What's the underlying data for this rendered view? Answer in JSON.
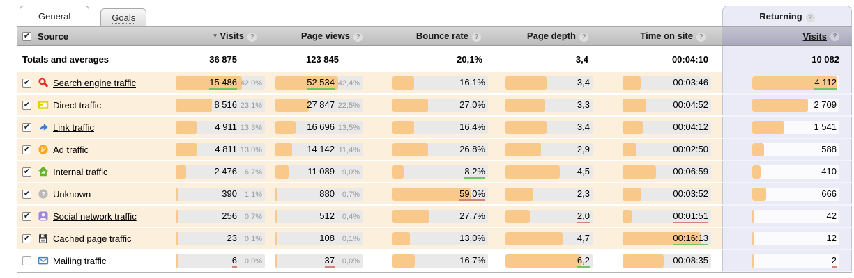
{
  "glyphs": {
    "help": "?",
    "sort_desc": "▼",
    "check": "✔"
  },
  "colors": {
    "bar": "#f9c98c",
    "row_bg": "#fcf0dc",
    "returning_bg": "#ebebf8",
    "mark_green": "#77c464",
    "mark_red": "#d2837a"
  },
  "tabs": [
    {
      "label": "General",
      "active": true
    },
    {
      "label": "Goals",
      "active": false
    }
  ],
  "table": {
    "header": {
      "source": "Source",
      "visits": "Visits",
      "page_views": "Page views",
      "bounce_rate": "Bounce rate",
      "page_depth": "Page depth",
      "time_on_site": "Time on site",
      "returning": "Returning",
      "returning_visits": "Visits"
    },
    "totals": {
      "label": "Totals and averages",
      "visits": "36 875",
      "page_views": "123 845",
      "bounce_rate": "20,1%",
      "page_depth": "3,4",
      "time_on_site": "00:04:10",
      "returning_visits": "10 082"
    },
    "rows": [
      {
        "label": "Search engine traffic",
        "icon": "search-icon",
        "checked": true,
        "link": true,
        "visits": {
          "value": "15 486",
          "num": 15486,
          "share": "42,0%",
          "mark": "green"
        },
        "page_views": {
          "value": "52 534",
          "num": 52534,
          "share": "42,4%",
          "mark": "green"
        },
        "bounce_rate": {
          "value": "16,1%",
          "num": 16.1
        },
        "page_depth": {
          "value": "3,4",
          "num": 3.4
        },
        "time_on_site": {
          "value": "00:03:46",
          "num": 226
        },
        "returning_visits": {
          "value": "4 112",
          "num": 4112,
          "mark": "green"
        }
      },
      {
        "label": "Direct traffic",
        "icon": "direct-icon",
        "checked": true,
        "link": false,
        "visits": {
          "value": "8 516",
          "num": 8516,
          "share": "23,1%"
        },
        "page_views": {
          "value": "27 847",
          "num": 27847,
          "share": "22,5%"
        },
        "bounce_rate": {
          "value": "27,0%",
          "num": 27.0
        },
        "page_depth": {
          "value": "3,3",
          "num": 3.3
        },
        "time_on_site": {
          "value": "00:04:52",
          "num": 292
        },
        "returning_visits": {
          "value": "2 709",
          "num": 2709
        }
      },
      {
        "label": "Link traffic",
        "icon": "link-icon",
        "checked": true,
        "link": true,
        "visits": {
          "value": "4 911",
          "num": 4911,
          "share": "13,3%"
        },
        "page_views": {
          "value": "16 696",
          "num": 16696,
          "share": "13,5%"
        },
        "bounce_rate": {
          "value": "16,4%",
          "num": 16.4
        },
        "page_depth": {
          "value": "3,4",
          "num": 3.4
        },
        "time_on_site": {
          "value": "00:04:12",
          "num": 252
        },
        "returning_visits": {
          "value": "1 541",
          "num": 1541
        }
      },
      {
        "label": "Ad traffic",
        "icon": "ad-icon",
        "checked": true,
        "link": true,
        "visits": {
          "value": "4 811",
          "num": 4811,
          "share": "13,0%"
        },
        "page_views": {
          "value": "14 142",
          "num": 14142,
          "share": "11,4%"
        },
        "bounce_rate": {
          "value": "26,8%",
          "num": 26.8
        },
        "page_depth": {
          "value": "2,9",
          "num": 2.9
        },
        "time_on_site": {
          "value": "00:02:50",
          "num": 170
        },
        "returning_visits": {
          "value": "588",
          "num": 588
        }
      },
      {
        "label": "Internal traffic",
        "icon": "internal-icon",
        "checked": true,
        "link": false,
        "visits": {
          "value": "2 476",
          "num": 2476,
          "share": "6,7%"
        },
        "page_views": {
          "value": "11 089",
          "num": 11089,
          "share": "9,0%"
        },
        "bounce_rate": {
          "value": "8,2%",
          "num": 8.2,
          "mark": "green"
        },
        "page_depth": {
          "value": "4,5",
          "num": 4.5
        },
        "time_on_site": {
          "value": "00:06:59",
          "num": 419
        },
        "returning_visits": {
          "value": "410",
          "num": 410
        }
      },
      {
        "label": "Unknown",
        "icon": "unknown-icon",
        "checked": true,
        "link": false,
        "visits": {
          "value": "390",
          "num": 390,
          "share": "1,1%"
        },
        "page_views": {
          "value": "880",
          "num": 880,
          "share": "0,7%"
        },
        "bounce_rate": {
          "value": "59,0%",
          "num": 59.0,
          "mark": "red"
        },
        "page_depth": {
          "value": "2,3",
          "num": 2.3
        },
        "time_on_site": {
          "value": "00:03:52",
          "num": 232
        },
        "returning_visits": {
          "value": "666",
          "num": 666
        }
      },
      {
        "label": "Social network traffic",
        "icon": "social-icon",
        "checked": true,
        "link": true,
        "visits": {
          "value": "256",
          "num": 256,
          "share": "0,7%"
        },
        "page_views": {
          "value": "512",
          "num": 512,
          "share": "0,4%"
        },
        "bounce_rate": {
          "value": "27,7%",
          "num": 27.7
        },
        "page_depth": {
          "value": "2,0",
          "num": 2.0,
          "mark": "red"
        },
        "time_on_site": {
          "value": "00:01:51",
          "num": 111,
          "mark": "red"
        },
        "returning_visits": {
          "value": "42",
          "num": 42
        }
      },
      {
        "label": "Cached page traffic",
        "icon": "cached-icon",
        "checked": true,
        "link": false,
        "visits": {
          "value": "23",
          "num": 23,
          "share": "0,1%"
        },
        "page_views": {
          "value": "108",
          "num": 108,
          "share": "0,1%"
        },
        "bounce_rate": {
          "value": "13,0%",
          "num": 13.0
        },
        "page_depth": {
          "value": "4,7",
          "num": 4.7
        },
        "time_on_site": {
          "value": "00:16:13",
          "num": 973,
          "mark": "green"
        },
        "returning_visits": {
          "value": "12",
          "num": 12
        }
      },
      {
        "label": "Mailing traffic",
        "icon": "mailing-icon",
        "checked": false,
        "link": false,
        "visits": {
          "value": "6",
          "num": 6,
          "share": "0,0%",
          "mark": "red"
        },
        "page_views": {
          "value": "37",
          "num": 37,
          "share": "0,0%",
          "mark": "red"
        },
        "bounce_rate": {
          "value": "16,7%",
          "num": 16.7
        },
        "page_depth": {
          "value": "6,2",
          "num": 6.2,
          "mark": "green"
        },
        "time_on_site": {
          "value": "00:08:35",
          "num": 515
        },
        "returning_visits": {
          "value": "2",
          "num": 2,
          "mark": "red"
        }
      }
    ]
  }
}
